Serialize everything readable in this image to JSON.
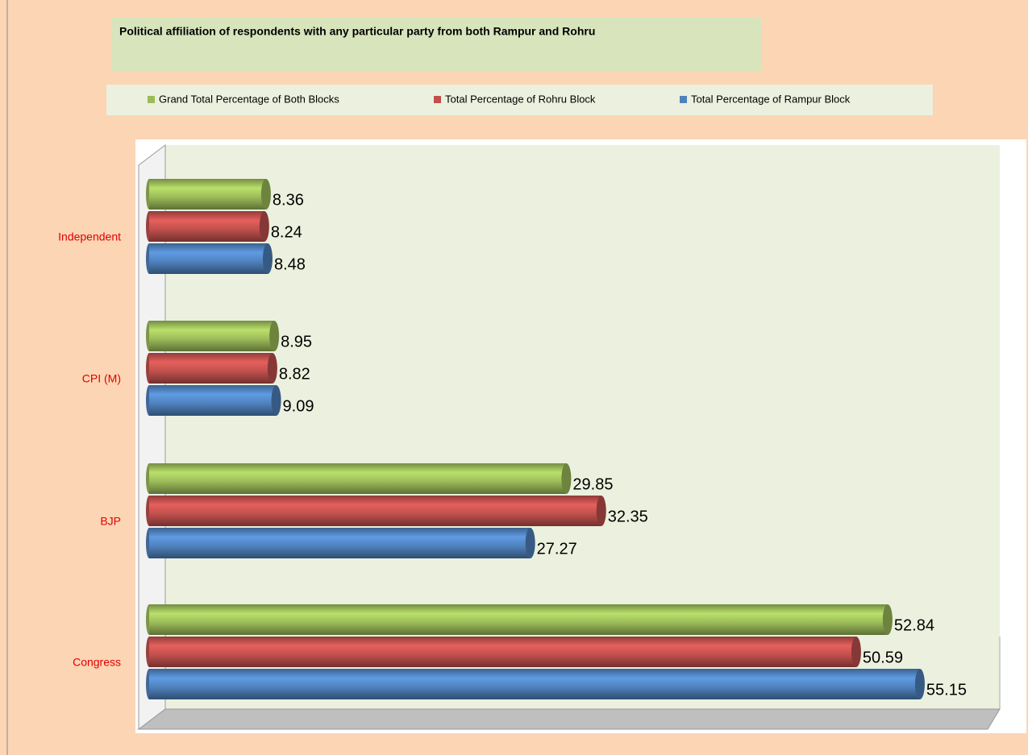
{
  "chart_data": {
    "type": "bar",
    "orientation": "horizontal",
    "title": "Political affiliation of respondents with any particular party from both Rampur and Rohru",
    "categories": [
      "Independent",
      "CPI (M)",
      "BJP",
      "Congress"
    ],
    "series": [
      {
        "name": "Grand Total Percentage of Both Blocks",
        "color": "#9bbb59",
        "values": [
          8.36,
          8.95,
          29.85,
          52.84
        ]
      },
      {
        "name": "Total Percentage of Rohru Block",
        "color": "#c0504d",
        "values": [
          8.24,
          8.82,
          32.35,
          50.59
        ]
      },
      {
        "name": "Total Percentage of Rampur Block",
        "color": "#4f81bd",
        "values": [
          8.48,
          9.09,
          27.27,
          55.15
        ]
      }
    ],
    "xlim": [
      0,
      60
    ],
    "legend": "top"
  }
}
